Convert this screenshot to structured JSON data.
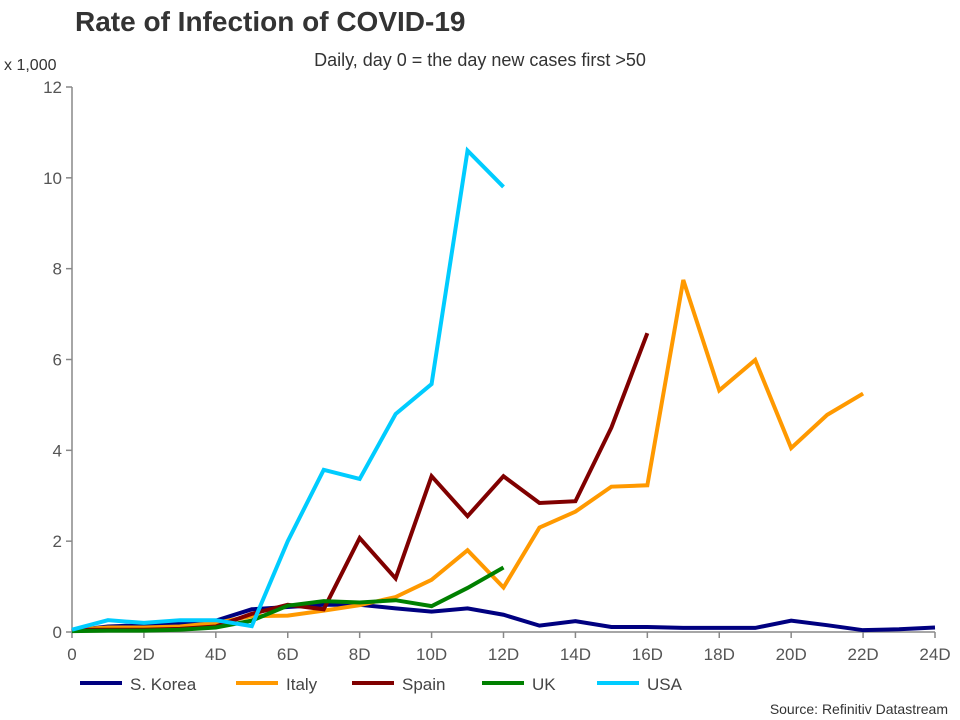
{
  "chart_data": {
    "type": "line",
    "title": "Rate of Infection of COVID-19",
    "subtitle": "Daily, day 0 = the day new cases first >50",
    "ylabel": "x 1,000",
    "source": "Source: Refinitiv Datastream",
    "ylim": [
      0,
      12
    ],
    "xlim": [
      0,
      24
    ],
    "y_ticks": [
      "0",
      "2",
      "4",
      "6",
      "8",
      "10",
      "12"
    ],
    "x_ticks": [
      "0",
      "2D",
      "4D",
      "6D",
      "8D",
      "10D",
      "12D",
      "14D",
      "16D",
      "18D",
      "20D",
      "22D",
      "24D"
    ],
    "grid": false,
    "legend_position": "bottom",
    "series": [
      {
        "name": "S. Korea",
        "color": "#000080",
        "values": [
          0.03,
          0.12,
          0.15,
          0.2,
          0.25,
          0.5,
          0.55,
          0.6,
          0.6,
          0.52,
          0.45,
          0.52,
          0.38,
          0.14,
          0.24,
          0.11,
          0.11,
          0.09,
          0.09,
          0.09,
          0.25,
          0.15,
          0.04,
          0.06,
          0.1
        ]
      },
      {
        "name": "Italy",
        "color": "#FF9900",
        "values": [
          0.05,
          0.1,
          0.1,
          0.12,
          0.2,
          0.35,
          0.36,
          0.47,
          0.59,
          0.77,
          1.15,
          1.8,
          0.98,
          2.3,
          2.65,
          3.2,
          3.23,
          7.75,
          5.32,
          5.99,
          4.05,
          4.78,
          5.25
        ]
      },
      {
        "name": "Spain",
        "color": "#800000",
        "values": [
          0.05,
          0.05,
          0.05,
          0.07,
          0.12,
          0.4,
          0.6,
          0.5,
          2.07,
          1.18,
          3.43,
          2.55,
          3.43,
          2.84,
          2.88,
          4.5,
          6.58
        ]
      },
      {
        "name": "UK",
        "color": "#008000",
        "values": [
          0.02,
          0.03,
          0.03,
          0.05,
          0.1,
          0.25,
          0.58,
          0.68,
          0.65,
          0.7,
          0.57,
          0.97,
          1.42
        ]
      },
      {
        "name": "USA",
        "color": "#00CCFF",
        "values": [
          0.05,
          0.26,
          0.2,
          0.26,
          0.26,
          0.13,
          2.0,
          3.57,
          3.37,
          4.8,
          5.46,
          10.6,
          9.8
        ]
      }
    ]
  }
}
